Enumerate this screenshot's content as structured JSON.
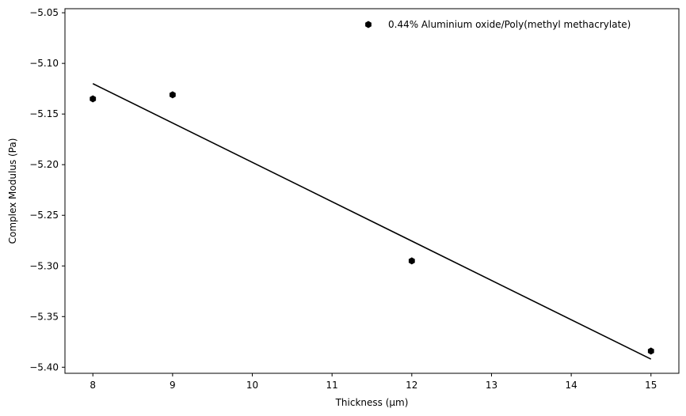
{
  "chart_data": {
    "type": "scatter",
    "title": "",
    "xlabel": "Thickness (μm)",
    "ylabel": "Complex Modulus (Pa)",
    "xlim": [
      7.65,
      15.35
    ],
    "ylim": [
      -5.406,
      -5.046
    ],
    "xticks": [
      8,
      9,
      10,
      11,
      12,
      13,
      14,
      15
    ],
    "yticks": [
      -5.4,
      -5.35,
      -5.3,
      -5.25,
      -5.2,
      -5.15,
      -5.1,
      -5.05
    ],
    "xtick_labels": [
      "8",
      "9",
      "10",
      "11",
      "12",
      "13",
      "14",
      "15"
    ],
    "ytick_labels": [
      "−5.40",
      "−5.35",
      "−5.30",
      "−5.25",
      "−5.20",
      "−5.15",
      "−5.10",
      "−5.05"
    ],
    "grid": false,
    "legend_position": "top-right",
    "series": [
      {
        "name": "0.44% Aluminium oxide/Poly(methyl methacrylate)",
        "kind": "scatter",
        "marker": "hexagon",
        "color": "#000000",
        "x": [
          8,
          9,
          12,
          15
        ],
        "y": [
          -5.135,
          -5.131,
          -5.295,
          -5.384
        ]
      },
      {
        "kind": "line",
        "color": "#000000",
        "x": [
          8,
          15
        ],
        "y": [
          -5.12,
          -5.392
        ]
      }
    ]
  }
}
